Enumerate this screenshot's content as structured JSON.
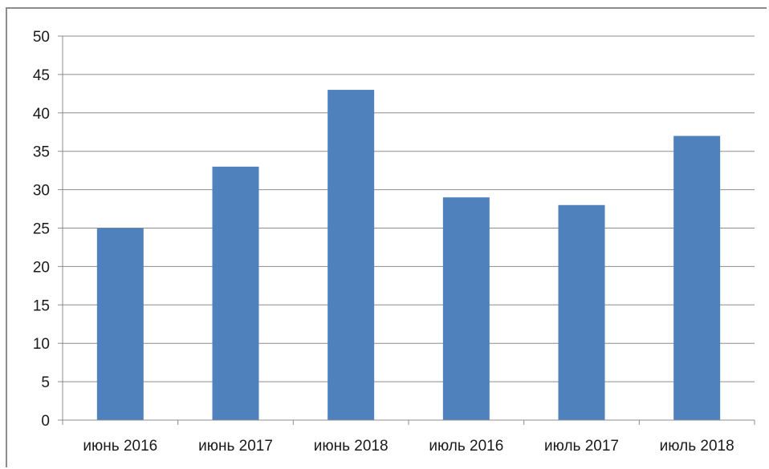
{
  "chart_data": {
    "type": "bar",
    "categories": [
      "июнь 2016",
      "июнь 2017",
      "июнь 2018",
      "июль 2016",
      "июль 2017",
      "июль 2018"
    ],
    "values": [
      25,
      33,
      43,
      29,
      28,
      37
    ],
    "ylim": [
      0,
      50
    ],
    "yticks": [
      0,
      5,
      10,
      15,
      20,
      25,
      30,
      35,
      40,
      45,
      50
    ],
    "grid": true,
    "legend": "none",
    "colors": {
      "bar": "#4f81bd",
      "grid": "#8c8c8c",
      "axis": "#8c8c8c"
    }
  }
}
